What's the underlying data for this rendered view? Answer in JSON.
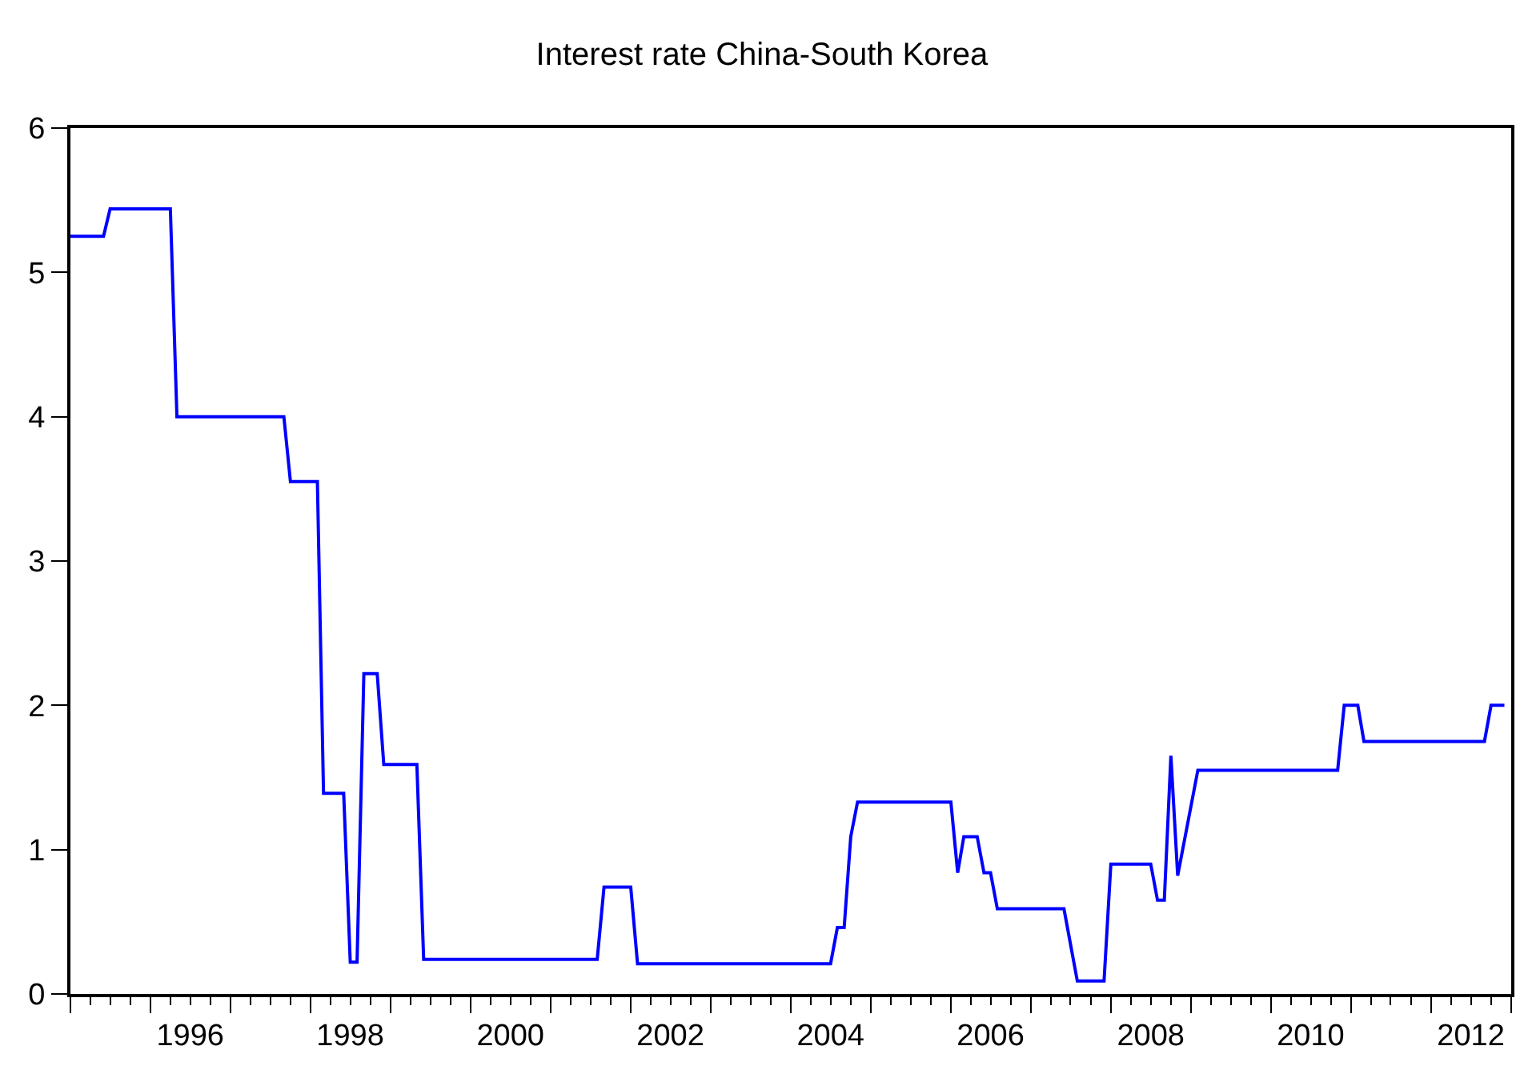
{
  "chart_data": {
    "type": "step",
    "title": "Interest rate China-South Korea",
    "x": [
      "1995-01",
      "1995-06",
      "1995-07",
      "1996-04",
      "1996-05",
      "1997-09",
      "1997-10",
      "1998-02",
      "1998-03",
      "1998-06",
      "1998-07",
      "1998-08",
      "1998-09",
      "1998-11",
      "1998-12",
      "1999-05",
      "1999-06",
      "2001-08",
      "2001-09",
      "2002-01",
      "2002-02",
      "2004-07",
      "2004-08",
      "2004-09",
      "2004-10",
      "2004-11",
      "2006-01",
      "2006-02",
      "2006-03",
      "2006-05",
      "2006-06",
      "2006-07",
      "2006-08",
      "2007-06",
      "2007-08",
      "2007-12",
      "2008-01",
      "2008-07",
      "2008-08",
      "2008-09",
      "2008-10",
      "2008-11",
      "2009-02",
      "2010-11",
      "2010-12",
      "2011-02",
      "2011-03",
      "2012-09",
      "2012-10",
      "2012-12"
    ],
    "series": [
      {
        "color": "#0000ff",
        "values": [
          5.25,
          5.25,
          5.44,
          5.44,
          4.0,
          4.0,
          3.55,
          3.55,
          1.39,
          1.39,
          0.22,
          0.22,
          2.22,
          2.22,
          1.59,
          1.59,
          0.24,
          0.24,
          0.74,
          0.74,
          0.21,
          0.21,
          0.46,
          0.46,
          1.09,
          1.33,
          1.33,
          0.84,
          1.09,
          1.09,
          0.84,
          0.84,
          0.59,
          0.59,
          0.09,
          0.09,
          0.9,
          0.9,
          0.65,
          0.65,
          1.65,
          0.82,
          1.55,
          1.55,
          2.0,
          2.0,
          1.75,
          1.75,
          2.0,
          2.0
        ]
      }
    ],
    "xlim": [
      "1995-01",
      "2013-01"
    ],
    "xticks": [
      {
        "value": "1995-01",
        "label": null
      },
      {
        "value": "1996-01",
        "label": null
      },
      {
        "value": "1996-07",
        "label": "1996"
      },
      {
        "value": "1997-01",
        "label": null
      },
      {
        "value": "1998-01",
        "label": null
      },
      {
        "value": "1998-07",
        "label": "1998"
      },
      {
        "value": "1999-01",
        "label": null
      },
      {
        "value": "2000-01",
        "label": null
      },
      {
        "value": "2000-07",
        "label": "2000"
      },
      {
        "value": "2001-01",
        "label": null
      },
      {
        "value": "2002-01",
        "label": null
      },
      {
        "value": "2002-07",
        "label": "2002"
      },
      {
        "value": "2003-01",
        "label": null
      },
      {
        "value": "2004-01",
        "label": null
      },
      {
        "value": "2004-07",
        "label": "2004"
      },
      {
        "value": "2005-01",
        "label": null
      },
      {
        "value": "2006-01",
        "label": null
      },
      {
        "value": "2006-07",
        "label": "2006"
      },
      {
        "value": "2007-01",
        "label": null
      },
      {
        "value": "2008-01",
        "label": null
      },
      {
        "value": "2008-07",
        "label": "2008"
      },
      {
        "value": "2009-01",
        "label": null
      },
      {
        "value": "2010-01",
        "label": null
      },
      {
        "value": "2010-07",
        "label": "2010"
      },
      {
        "value": "2011-01",
        "label": null
      },
      {
        "value": "2012-01",
        "label": null
      },
      {
        "value": "2012-07",
        "label": "2012"
      },
      {
        "value": "2013-01",
        "label": null
      }
    ],
    "ylim": [
      0,
      6
    ],
    "yticks": [
      0,
      1,
      2,
      3,
      4,
      5,
      6
    ],
    "line_style": "solid",
    "marker": "none"
  }
}
